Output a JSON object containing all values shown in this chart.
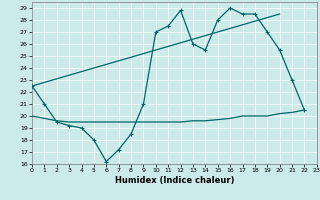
{
  "xlabel": "Humidex (Indice chaleur)",
  "bg_color": "#cceaea",
  "line_color": "#006666",
  "grid_color": "#ffffff",
  "xlim": [
    0,
    23
  ],
  "ylim": [
    16,
    29.5
  ],
  "xticks": [
    0,
    1,
    2,
    3,
    4,
    5,
    6,
    7,
    8,
    9,
    10,
    11,
    12,
    13,
    14,
    15,
    16,
    17,
    18,
    19,
    20,
    21,
    22,
    23
  ],
  "yticks": [
    16,
    17,
    18,
    19,
    20,
    21,
    22,
    23,
    24,
    25,
    26,
    27,
    28,
    29
  ],
  "line1_x": [
    0,
    1,
    2,
    3,
    4,
    5,
    6,
    7,
    8,
    9,
    10,
    11,
    12,
    13,
    14,
    15,
    16,
    17,
    18,
    19,
    20,
    21,
    22
  ],
  "line1_y": [
    22.5,
    21.0,
    19.5,
    19.2,
    19.0,
    18.0,
    16.2,
    17.2,
    18.5,
    21.0,
    27.0,
    27.5,
    28.8,
    26.0,
    25.5,
    28.0,
    29.0,
    28.5,
    28.5,
    27.0,
    25.5,
    23.0,
    20.5
  ],
  "line2_x": [
    0,
    1,
    2,
    3,
    4,
    5,
    6,
    7,
    8,
    9,
    10,
    11,
    12,
    13,
    14,
    15,
    16,
    17,
    18,
    19,
    20,
    21,
    22
  ],
  "line2_y": [
    20.0,
    19.8,
    19.6,
    19.5,
    19.5,
    19.5,
    19.5,
    19.5,
    19.5,
    19.5,
    19.5,
    19.5,
    19.5,
    19.6,
    19.6,
    19.7,
    19.8,
    20.0,
    20.0,
    20.0,
    20.2,
    20.3,
    20.5
  ],
  "line3_x": [
    0,
    20
  ],
  "line3_y": [
    22.5,
    28.5
  ]
}
